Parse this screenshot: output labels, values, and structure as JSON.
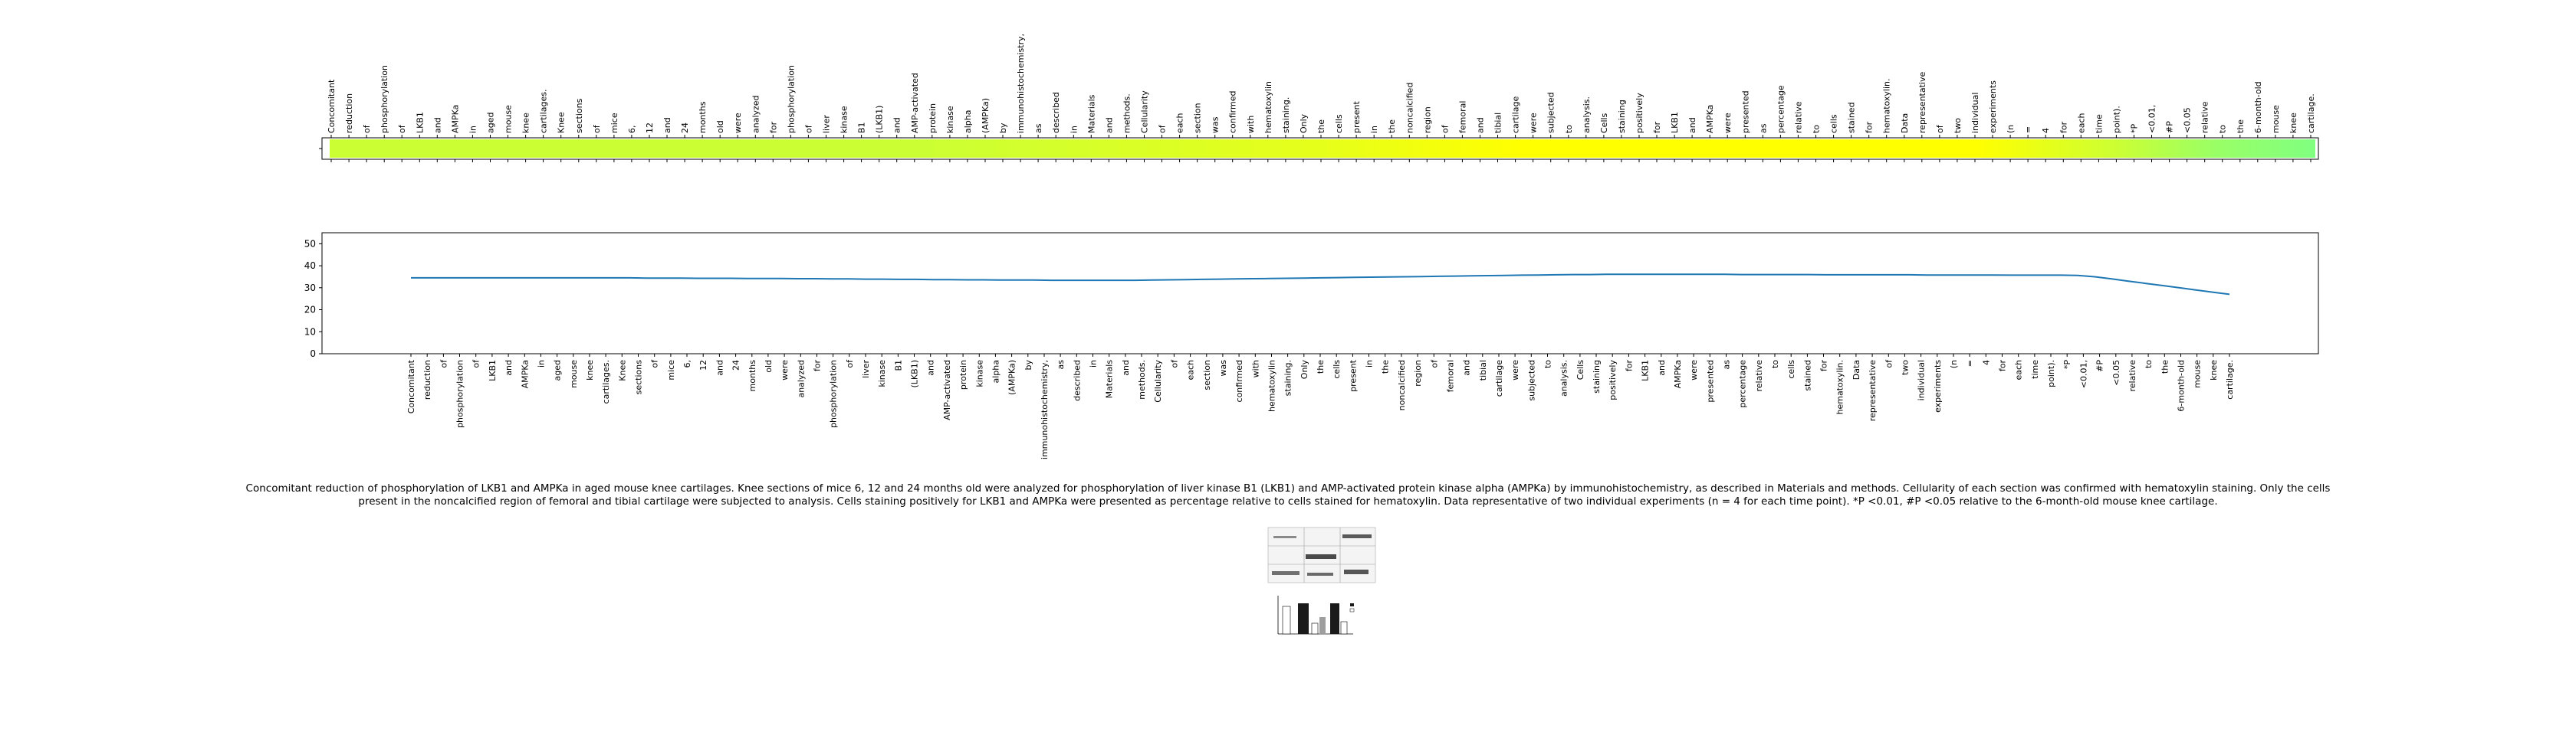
{
  "caption": "Concomitant reduction of phosphorylation of LKB1 and AMPKa in aged mouse knee cartilages. Knee sections of mice 6, 12 and 24 months old were analyzed for phosphorylation of liver kinase B1 (LKB1) and AMP-activated protein kinase alpha (AMPKa) by immunohistochemistry, as described in Materials and methods. Cellularity of each section was confirmed with hematoxylin staining. Only the cells present in the noncalcified region of femoral and tibial cartilage were subjected to analysis. Cells staining positively for LKB1 and AMPKa were presented as percentage relative to cells stained for hematoxylin. Data representative of two individual experiments (n = 4 for each time point). *P <0.01, #P <0.05 relative to the 6-month-old mouse knee cartilage.",
  "colors": {
    "line": "#1f77b4",
    "heat_main": "#ccff33",
    "heat_yellow": "#ffff00",
    "heat_green": "#80ff80"
  },
  "chart_data": [
    {
      "type": "heatmap",
      "categories": [
        "Concomitant",
        "reduction",
        "of",
        "phosphorylation",
        "of",
        "LKB1",
        "and",
        "AMPKa",
        "in",
        "aged",
        "mouse",
        "knee",
        "cartilages.",
        "Knee",
        "sections",
        "of",
        "mice",
        "6,",
        "12",
        "and",
        "24",
        "months",
        "old",
        "were",
        "analyzed",
        "for",
        "phosphorylation",
        "of",
        "liver",
        "kinase",
        "B1",
        "(LKB1)",
        "and",
        "AMP-activated",
        "protein",
        "kinase",
        "alpha",
        "(AMPKa)",
        "by",
        "immunohistochemistry,",
        "as",
        "described",
        "in",
        "Materials",
        "and",
        "methods.",
        "Cellularity",
        "of",
        "each",
        "section",
        "was",
        "confirmed",
        "with",
        "hematoxylin",
        "staining.",
        "Only",
        "the",
        "cells",
        "present",
        "in",
        "the",
        "noncalcified",
        "region",
        "of",
        "femoral",
        "and",
        "tibial",
        "cartilage",
        "were",
        "subjected",
        "to",
        "analysis.",
        "Cells",
        "staining",
        "positively",
        "for",
        "LKB1",
        "and",
        "AMPKa",
        "were",
        "presented",
        "as",
        "percentage",
        "relative",
        "to",
        "cells",
        "stained",
        "for",
        "hematoxylin.",
        "Data",
        "representative",
        "of",
        "two",
        "individual",
        "experiments",
        "(n",
        "=",
        "4",
        "for",
        "each",
        "time",
        "point).",
        "*P",
        "<0.01,",
        "#P",
        "<0.05",
        "relative",
        "to",
        "the",
        "6-month-old",
        "mouse",
        "knee",
        "cartilage."
      ]
    },
    {
      "type": "line",
      "ylim": [
        0,
        55
      ],
      "yticks": [
        0,
        10,
        20,
        30,
        40,
        50
      ],
      "values": [
        34.5,
        34.5,
        34.5,
        34.5,
        34.5,
        34.5,
        34.5,
        34.5,
        34.5,
        34.5,
        34.5,
        34.5,
        34.5,
        34.5,
        34.4,
        34.4,
        34.4,
        34.3,
        34.3,
        34.3,
        34.2,
        34.2,
        34.2,
        34.1,
        34.1,
        34.0,
        34.0,
        33.9,
        33.9,
        33.8,
        33.8,
        33.7,
        33.7,
        33.6,
        33.6,
        33.5,
        33.5,
        33.5,
        33.4,
        33.4,
        33.4,
        33.4,
        33.4,
        33.4,
        33.5,
        33.6,
        33.7,
        33.8,
        33.9,
        34.0,
        34.1,
        34.2,
        34.3,
        34.4,
        34.5,
        34.6,
        34.7,
        34.8,
        34.9,
        35.0,
        35.1,
        35.2,
        35.3,
        35.4,
        35.5,
        35.6,
        35.7,
        35.8,
        35.9,
        36.0,
        36.0,
        36.1,
        36.1,
        36.1,
        36.1,
        36.1,
        36.1,
        36.1,
        36.1,
        36.0,
        36.0,
        36.0,
        36.0,
        36.0,
        35.9,
        35.9,
        35.9,
        35.9,
        35.9,
        35.9,
        35.8,
        35.8,
        35.8,
        35.8,
        35.8,
        35.7,
        35.7,
        35.7,
        35.7,
        35.6,
        35.0,
        34.0,
        33.0,
        32.0,
        31.0,
        30.0,
        29.0,
        28.0,
        27.0
      ]
    }
  ]
}
